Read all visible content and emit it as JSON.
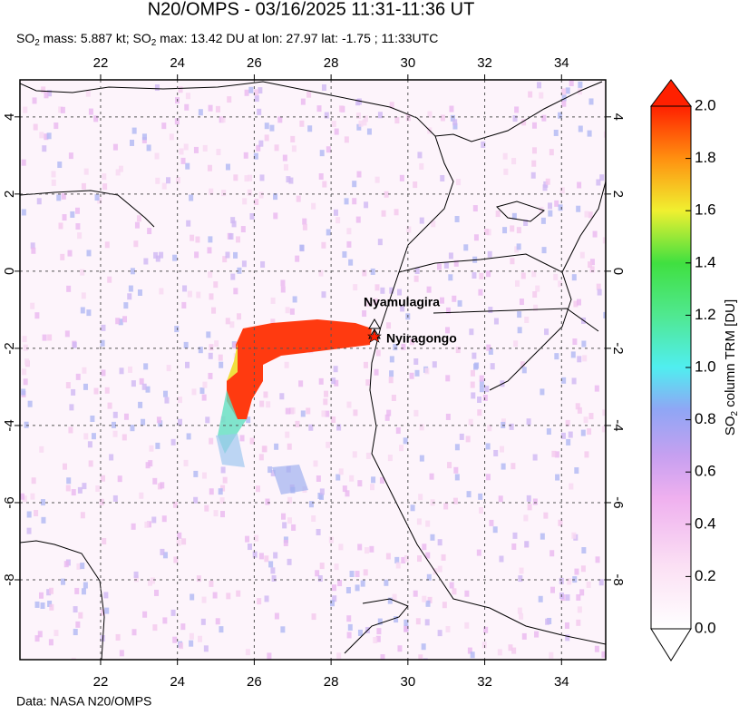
{
  "title": "N20/OMPS - 03/16/2025 11:31-11:36 UT",
  "subtitle": [
    "SO",
    "2",
    " mass: 5.887 kt; SO",
    "2",
    " max: 13.42 DU at lon: 27.97 lat: -1.75 ; 11:33UTC"
  ],
  "map": {
    "xlim": [
      19.9,
      35.15
    ],
    "ylim": [
      -10.07,
      4.96
    ],
    "xticks": [
      22,
      24,
      26,
      28,
      30,
      32,
      34
    ],
    "yticks": [
      4,
      2,
      0,
      -2,
      -4,
      -6,
      -8
    ],
    "grid": true,
    "volcanoes": [
      "Nyamulagira",
      "Nyiragongo"
    ]
  },
  "colorbar": {
    "label": [
      "SO",
      "2",
      " column TRM [DU]"
    ],
    "lim": [
      0,
      2
    ],
    "ticks": [
      {
        "value": 0,
        "label": "0.0"
      },
      {
        "value": 0.2,
        "label": "0.2"
      },
      {
        "value": 0.4,
        "label": "0.4"
      },
      {
        "value": 0.6,
        "label": "0.6"
      },
      {
        "value": 0.8,
        "label": "0.8"
      },
      {
        "value": 1.0,
        "label": "1.0"
      },
      {
        "value": 1.2,
        "label": "1.2"
      },
      {
        "value": 1.4,
        "label": "1.4"
      },
      {
        "value": 1.6,
        "label": "1.6"
      },
      {
        "value": 1.8,
        "label": "1.8"
      },
      {
        "value": 2.0,
        "label": "2.0"
      }
    ]
  },
  "credit": "Data: NASA N20/OMPS"
}
